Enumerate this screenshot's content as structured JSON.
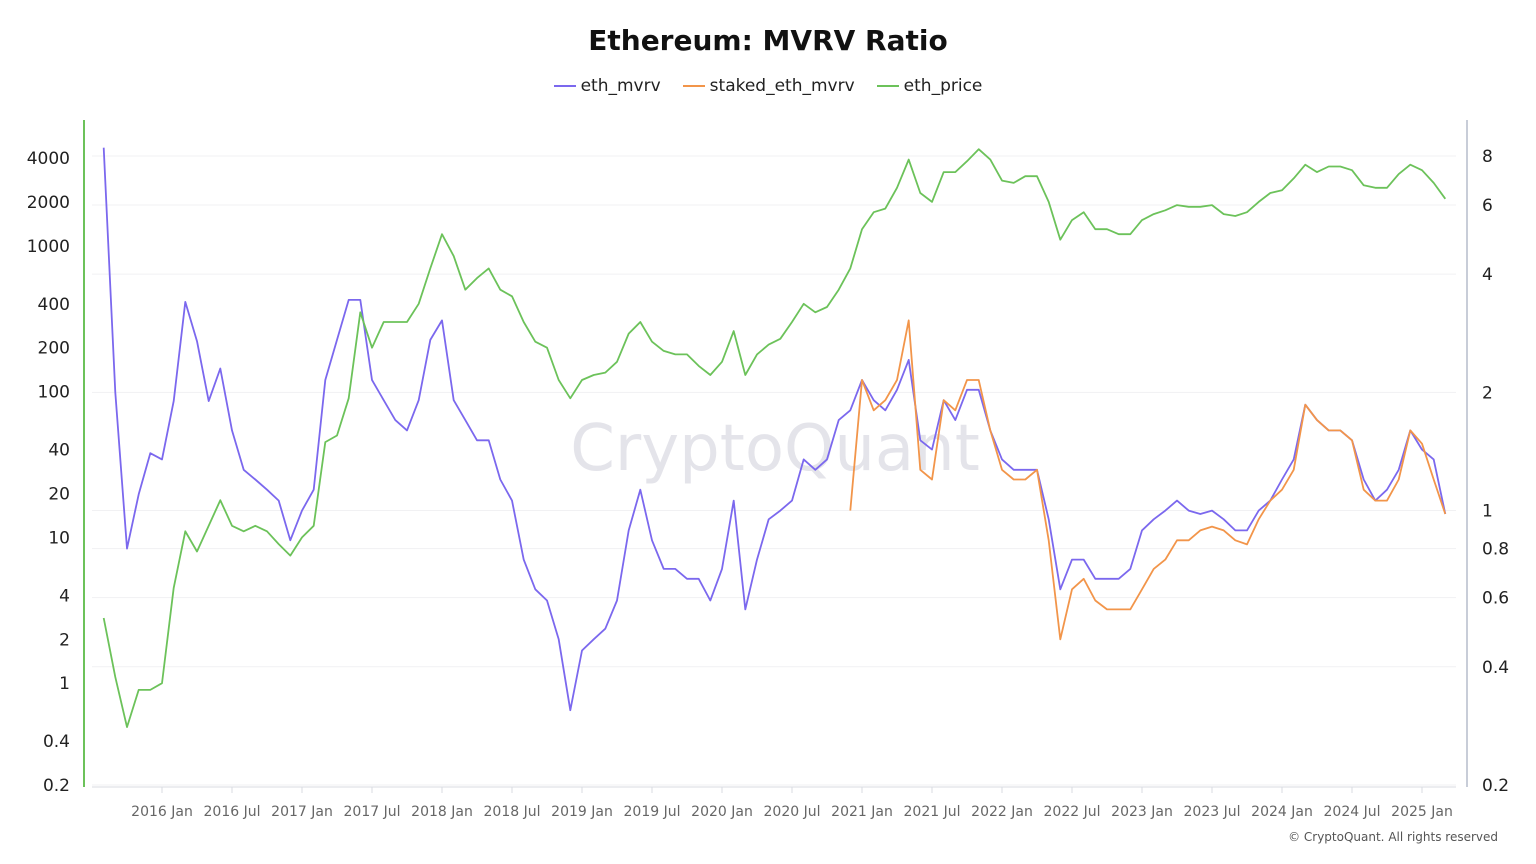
{
  "chart_data": {
    "type": "line",
    "title": "Ethereum: MVRV Ratio",
    "watermark": "CryptoQuant",
    "copyright": "© CryptoQuant. All rights reserved",
    "grid": true,
    "legend_placement": "top-center",
    "x_ticks": [
      "2016 Jan",
      "2016 Jul",
      "2017 Jan",
      "2017 Jul",
      "2018 Jan",
      "2018 Jul",
      "2019 Jan",
      "2019 Jul",
      "2020 Jan",
      "2020 Jul",
      "2021 Jan",
      "2021 Jul",
      "2022 Jan",
      "2022 Jul",
      "2023 Jan",
      "2023 Jul",
      "2024 Jan",
      "2024 Jul",
      "2025 Jan"
    ],
    "left_axis": {
      "scale": "log",
      "range": [
        0.2,
        7300
      ],
      "ticks": [
        "4000",
        "2000",
        "1000",
        "400",
        "200",
        "100",
        "40",
        "20",
        "10",
        "4",
        "2",
        "1",
        "0.4",
        "0.2"
      ],
      "color": "#6cc25a"
    },
    "right_axis": {
      "scale": "log",
      "range": [
        0.2,
        10.2
      ],
      "ticks": [
        "8",
        "6",
        "4",
        "2",
        "1",
        "0.8",
        "0.6",
        "0.4",
        "0.2"
      ],
      "color": "#c8cdd8"
    },
    "series": [
      {
        "name": "eth_mvrv",
        "color": "#7b68ee",
        "axis": "right",
        "start": "2015-08",
        "values": [
          8.4,
          2.0,
          0.8,
          1.1,
          1.4,
          1.35,
          1.9,
          3.4,
          2.7,
          1.9,
          2.3,
          1.6,
          1.27,
          1.2,
          1.13,
          1.06,
          0.84,
          1.0,
          1.13,
          2.15,
          2.72,
          3.44,
          3.44,
          2.15,
          1.91,
          1.7,
          1.6,
          1.91,
          2.72,
          3.05,
          1.91,
          1.7,
          1.51,
          1.51,
          1.2,
          1.06,
          0.75,
          0.63,
          0.59,
          0.47,
          0.31,
          0.44,
          0.47,
          0.5,
          0.59,
          0.89,
          1.13,
          0.84,
          0.71,
          0.71,
          0.67,
          0.67,
          0.59,
          0.71,
          1.06,
          0.56,
          0.75,
          0.95,
          1.0,
          1.06,
          1.35,
          1.27,
          1.35,
          1.7,
          1.8,
          2.15,
          1.91,
          1.8,
          2.03,
          2.42,
          1.51,
          1.43,
          1.91,
          1.7,
          2.03,
          2.03,
          1.6,
          1.35,
          1.27,
          1.27,
          1.27,
          0.95,
          0.63,
          0.75,
          0.75,
          0.67,
          0.67,
          0.67,
          0.71,
          0.89,
          0.95,
          1.0,
          1.06,
          1.0,
          0.98,
          1.0,
          0.95,
          0.89,
          0.89,
          1.0,
          1.06,
          1.2,
          1.35,
          1.86,
          1.7,
          1.6,
          1.6,
          1.51,
          1.2,
          1.06,
          1.13,
          1.27,
          1.6,
          1.43,
          1.35,
          0.98
        ]
      },
      {
        "name": "staked_eth_mvrv",
        "color": "#f2954a",
        "axis": "right",
        "start": "2020-12",
        "values": [
          1.0,
          2.15,
          1.8,
          1.91,
          2.15,
          3.05,
          1.27,
          1.2,
          1.91,
          1.8,
          2.15,
          2.15,
          1.6,
          1.27,
          1.2,
          1.2,
          1.27,
          0.84,
          0.47,
          0.63,
          0.67,
          0.59,
          0.56,
          0.56,
          0.56,
          0.63,
          0.71,
          0.75,
          0.84,
          0.84,
          0.89,
          0.91,
          0.89,
          0.84,
          0.82,
          0.95,
          1.06,
          1.13,
          1.27,
          1.86,
          1.7,
          1.6,
          1.6,
          1.51,
          1.13,
          1.06,
          1.06,
          1.2,
          1.6,
          1.48,
          1.2,
          0.98
        ]
      },
      {
        "name": "eth_price",
        "color": "#6cc25a",
        "axis": "left",
        "start": "2015-08",
        "values": [
          2.8,
          1.1,
          0.5,
          0.9,
          0.9,
          1.0,
          4.5,
          11,
          8,
          12,
          18,
          12,
          11,
          12,
          11,
          9,
          7.5,
          10,
          12,
          45,
          50,
          90,
          350,
          200,
          300,
          300,
          300,
          400,
          700,
          1200,
          850,
          500,
          600,
          700,
          500,
          450,
          300,
          220,
          200,
          120,
          90,
          120,
          130,
          135,
          160,
          250,
          300,
          220,
          190,
          180,
          180,
          150,
          130,
          160,
          260,
          130,
          180,
          210,
          230,
          300,
          400,
          350,
          380,
          500,
          700,
          1300,
          1700,
          1800,
          2500,
          3900,
          2300,
          2000,
          3200,
          3200,
          3800,
          4600,
          3900,
          2800,
          2700,
          3000,
          3000,
          2000,
          1100,
          1500,
          1700,
          1300,
          1300,
          1200,
          1200,
          1500,
          1650,
          1750,
          1900,
          1850,
          1850,
          1900,
          1650,
          1600,
          1700,
          2000,
          2300,
          2400,
          2900,
          3600,
          3200,
          3500,
          3500,
          3300,
          2600,
          2500,
          2500,
          3100,
          3600,
          3300,
          2700,
          2100
        ]
      }
    ]
  }
}
